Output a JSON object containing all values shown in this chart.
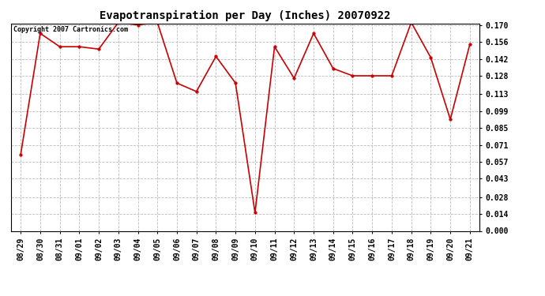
{
  "title": "Evapotranspiration per Day (Inches) 20070922",
  "copyright": "Copyright 2007 Cartronics.com",
  "x_labels": [
    "08/29",
    "08/30",
    "08/31",
    "09/01",
    "09/02",
    "09/03",
    "09/04",
    "09/05",
    "09/06",
    "09/07",
    "09/08",
    "09/09",
    "09/10",
    "09/11",
    "09/12",
    "09/13",
    "09/14",
    "09/15",
    "09/16",
    "09/17",
    "09/18",
    "09/19",
    "09/20",
    "09/21"
  ],
  "y_values": [
    0.063,
    0.163,
    0.152,
    0.152,
    0.15,
    0.172,
    0.17,
    0.172,
    0.122,
    0.115,
    0.144,
    0.122,
    0.015,
    0.152,
    0.126,
    0.163,
    0.134,
    0.128,
    0.128,
    0.128,
    0.172,
    0.143,
    0.092,
    0.154
  ],
  "y_ticks": [
    0.0,
    0.014,
    0.028,
    0.043,
    0.057,
    0.071,
    0.085,
    0.099,
    0.113,
    0.128,
    0.142,
    0.156,
    0.17
  ],
  "line_color": "#cc0000",
  "marker_color": "#cc0000",
  "background_color": "#ffffff",
  "plot_background": "#ffffff",
  "grid_color": "#bbbbbb",
  "title_fontsize": 10,
  "copyright_fontsize": 6,
  "tick_fontsize": 7,
  "ylim": [
    0.0,
    0.17
  ]
}
